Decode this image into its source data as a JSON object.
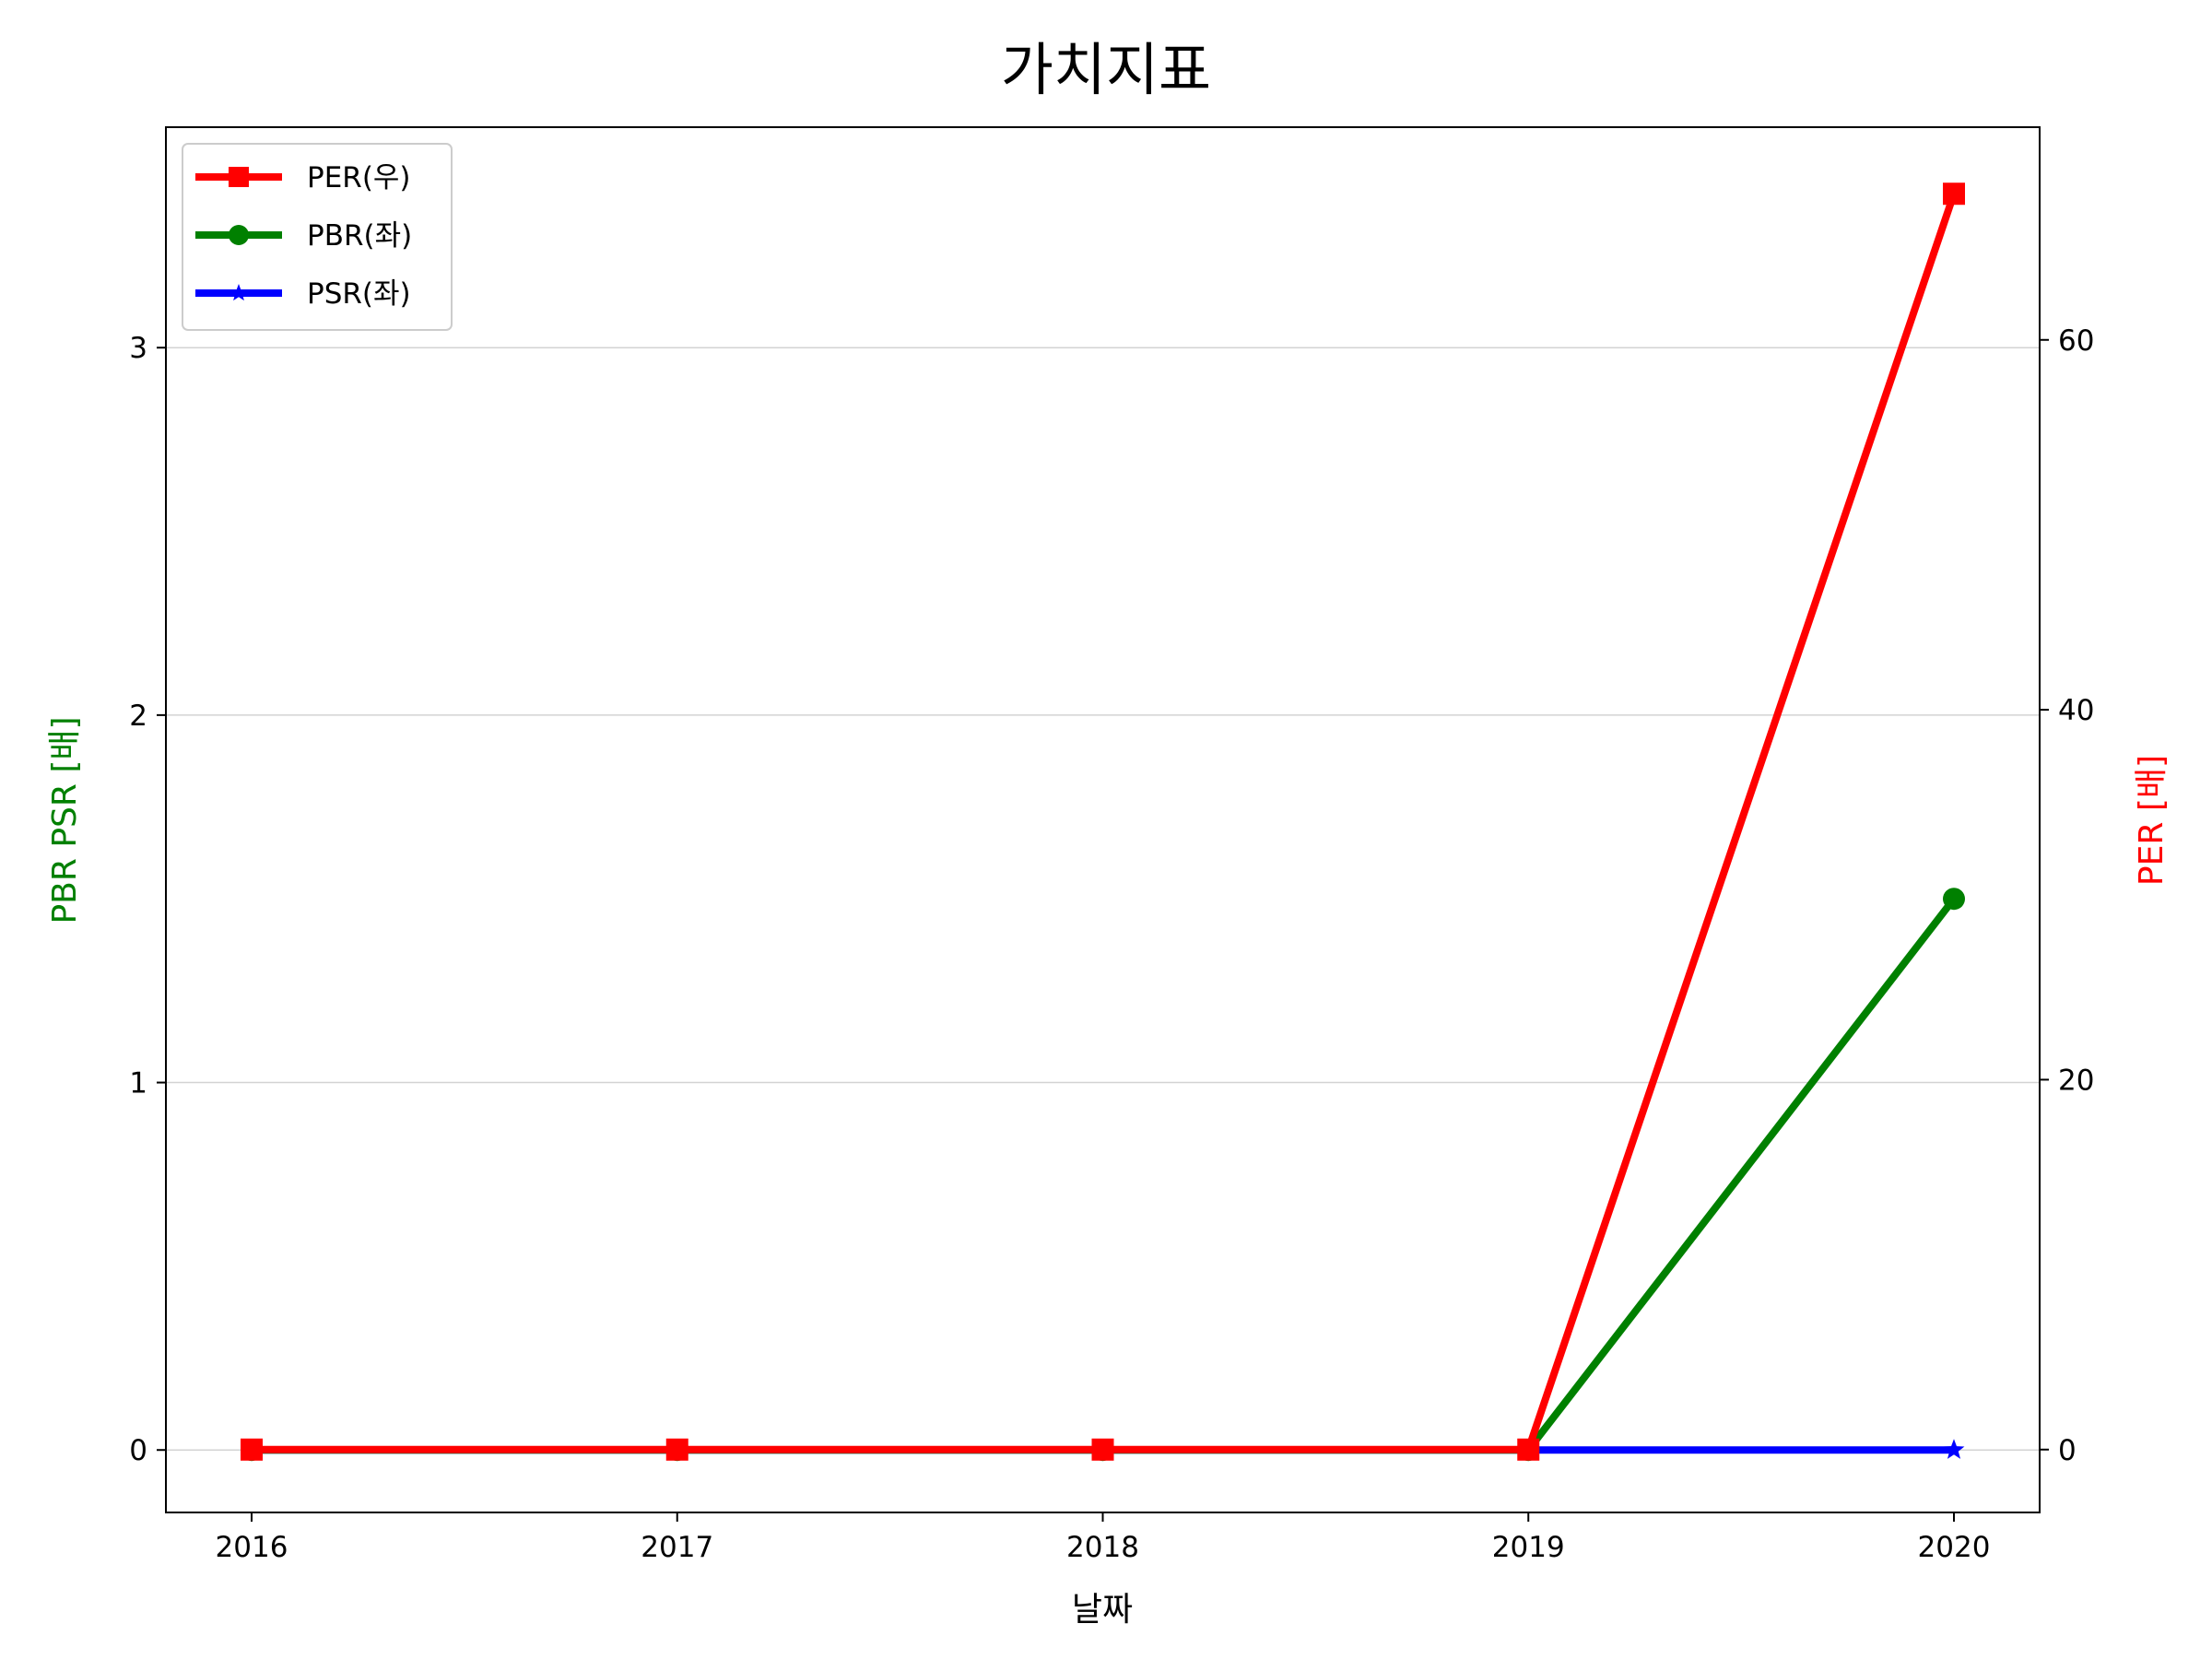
{
  "chart_data": {
    "type": "line",
    "title": "가치지표",
    "xlabel": "날짜",
    "ylabel_left": "PBR PSR [배]",
    "ylabel_right": "PER [배]",
    "ylabel_left_color": "#008000",
    "ylabel_right_color": "#ff0000",
    "x": [
      "2016",
      "2017",
      "2018",
      "2019",
      "2020"
    ],
    "ylim_left": [
      -0.17,
      3.6
    ],
    "ylim_right": [
      -3.4,
      71.5
    ],
    "yticks_left": [
      0,
      1,
      2,
      3
    ],
    "yticks_right": [
      0,
      20,
      40,
      60
    ],
    "grid": "horizontal",
    "legend_position": "upper-left",
    "series": [
      {
        "name": "PER(우)",
        "axis": "right",
        "color": "#ff0000",
        "marker": "square",
        "values": [
          0,
          0,
          0,
          0,
          67.9
        ]
      },
      {
        "name": "PBR(좌)",
        "axis": "left",
        "color": "#008000",
        "marker": "circle",
        "values": [
          0,
          0,
          0,
          0,
          1.5
        ]
      },
      {
        "name": "PSR(좌)",
        "axis": "left",
        "color": "#0000ff",
        "marker": "star",
        "values": [
          0,
          0,
          0,
          0,
          0
        ]
      }
    ]
  }
}
